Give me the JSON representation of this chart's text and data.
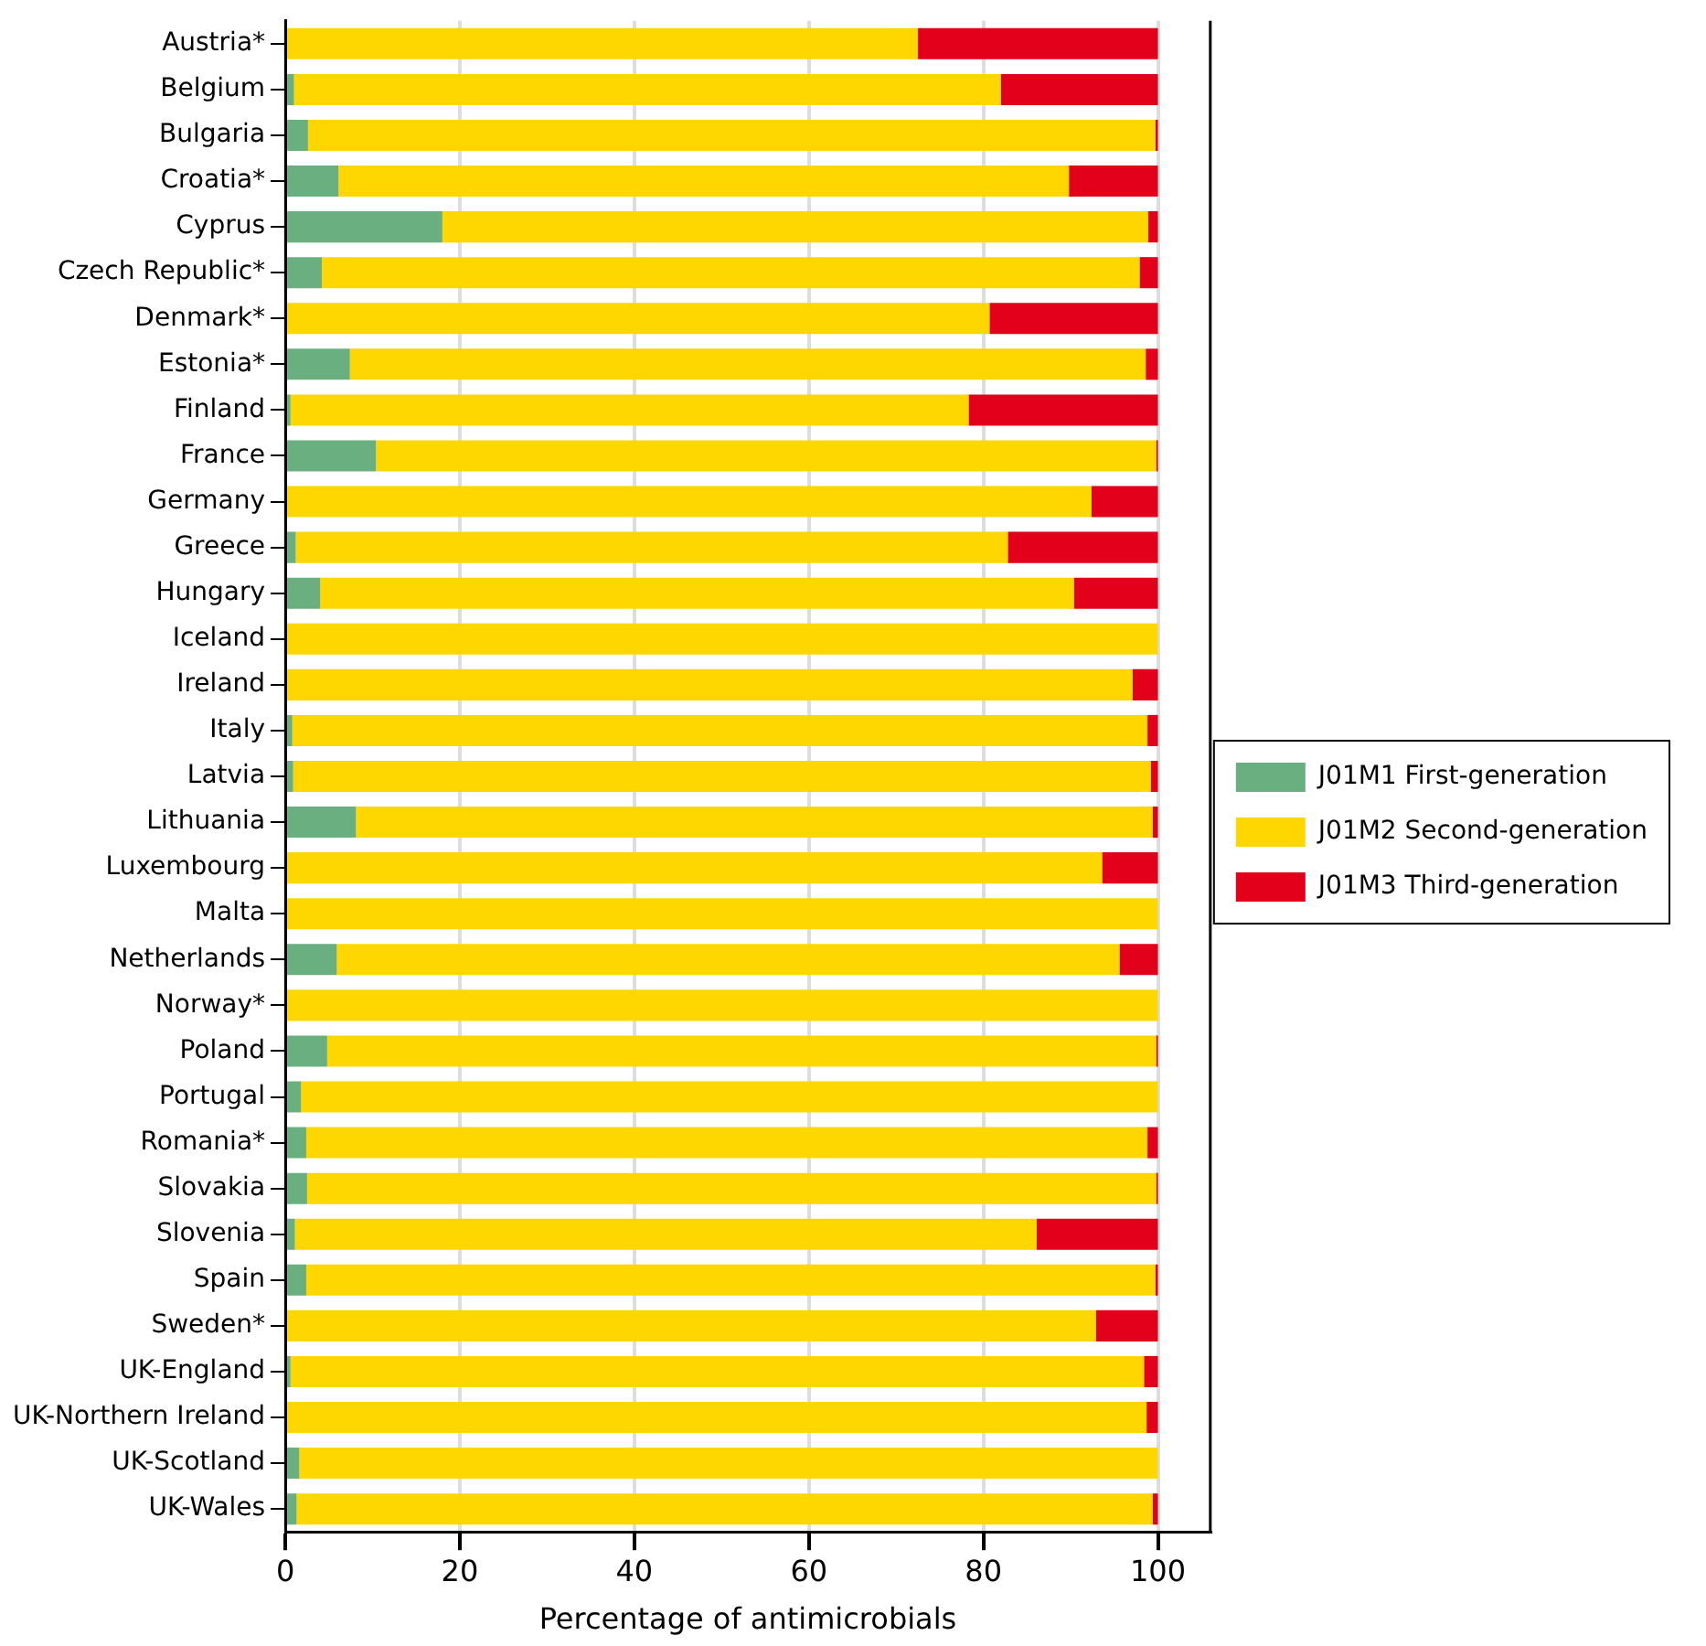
{
  "chart_data": {
    "type": "bar",
    "orientation": "horizontal",
    "stacked": true,
    "xlabel": "Percentage of antimicrobials",
    "categories": [
      "Austria*",
      "Belgium",
      "Bulgaria",
      "Croatia*",
      "Cyprus",
      "Czech Republic*",
      "Denmark*",
      "Estonia*",
      "Finland",
      "France",
      "Germany",
      "Greece",
      "Hungary",
      "Iceland",
      "Ireland",
      "Italy",
      "Latvia",
      "Lithuania",
      "Luxembourg",
      "Malta",
      "Netherlands",
      "Norway*",
      "Poland",
      "Portugal",
      "Romania*",
      "Slovakia",
      "Slovenia",
      "Spain",
      "Sweden*",
      "UK-England",
      "UK-Northern Ireland",
      "UK-Scotland",
      "UK-Wales"
    ],
    "series": [
      {
        "name": "J01M1 First-generation",
        "color": "#6aaf80",
        "values": [
          0,
          1,
          2.6,
          6.1,
          18,
          4.2,
          0,
          7.4,
          0.6,
          10.4,
          0,
          1.2,
          4,
          0,
          0,
          0.8,
          0.9,
          8.1,
          0,
          0,
          5.9,
          0,
          4.8,
          1.8,
          2.4,
          2.5,
          1.1,
          2.4,
          0,
          0.6,
          0,
          1.6,
          1.3
        ]
      },
      {
        "name": "J01M2 Second-generation",
        "color": "#ffd700",
        "values": [
          72.5,
          81,
          97.1,
          83.7,
          80.9,
          93.7,
          80.7,
          91.2,
          77.7,
          89.4,
          92.4,
          81.6,
          86.4,
          100,
          97.1,
          98,
          98.3,
          91.3,
          93.6,
          100,
          89.7,
          100,
          95,
          98.2,
          96.4,
          97.3,
          85,
          97.3,
          92.9,
          97.8,
          98.7,
          98.4,
          98.1
        ]
      },
      {
        "name": "J01M3 Third-generation",
        "color": "#e2001a",
        "values": [
          27.5,
          18,
          0.3,
          10.2,
          1.1,
          2.1,
          19.3,
          1.4,
          21.7,
          0.2,
          7.6,
          17.2,
          9.6,
          0,
          2.9,
          1.2,
          0.8,
          0.6,
          6.4,
          0,
          4.4,
          0,
          0.2,
          0,
          1.2,
          0.2,
          13.9,
          0.3,
          7.1,
          1.6,
          1.3,
          0,
          0.6
        ]
      }
    ],
    "xlim": [
      0,
      106
    ],
    "xticks": [
      0,
      20,
      40,
      60,
      80,
      100
    ],
    "grid": "x",
    "legend": "right"
  }
}
